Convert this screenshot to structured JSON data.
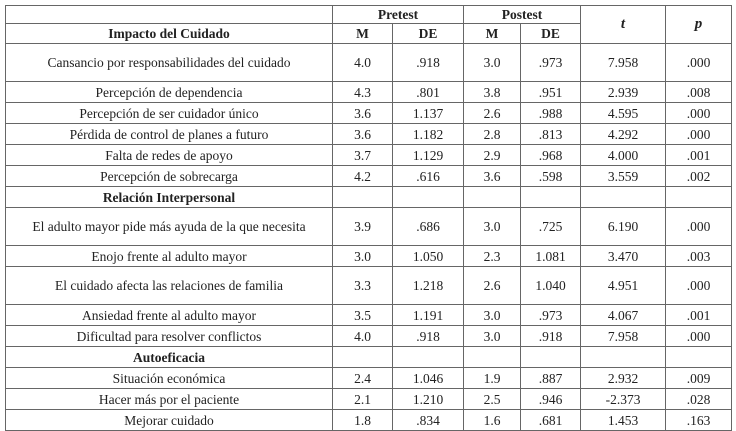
{
  "table": {
    "groups": [
      "Pretest",
      "Postest"
    ],
    "columns": [
      "M",
      "DE",
      "M",
      "DE",
      "t",
      "p"
    ],
    "sections": [
      {
        "title": "Impacto del Cuidado",
        "rows": [
          [
            "Cansancio por responsabilidades del cuidado",
            "4.0",
            ".918",
            "3.0",
            ".973",
            "7.958",
            ".000"
          ],
          [
            "Percepción de dependencia",
            "4.3",
            ".801",
            "3.8",
            ".951",
            "2.939",
            ".008"
          ],
          [
            "Percepción de ser cuidador único",
            "3.6",
            "1.137",
            "2.6",
            ".988",
            "4.595",
            ".000"
          ],
          [
            "Pérdida de control de planes a futuro",
            "3.6",
            "1.182",
            "2.8",
            ".813",
            "4.292",
            ".000"
          ],
          [
            "Falta de redes de apoyo",
            "3.7",
            "1.129",
            "2.9",
            ".968",
            "4.000",
            ".001"
          ],
          [
            "Percepción de sobrecarga",
            "4.2",
            ".616",
            "3.6",
            ".598",
            "3.559",
            ".002"
          ]
        ]
      },
      {
        "title": "Relación Interpersonal",
        "rows": [
          [
            "El adulto mayor pide más ayuda de la que necesita",
            "3.9",
            ".686",
            "3.0",
            ".725",
            "6.190",
            ".000"
          ],
          [
            "Enojo frente al adulto mayor",
            "3.0",
            "1.050",
            "2.3",
            "1.081",
            "3.470",
            ".003"
          ],
          [
            "El cuidado afecta las relaciones de familia",
            "3.3",
            "1.218",
            "2.6",
            "1.040",
            "4.951",
            ".000"
          ],
          [
            "Ansiedad frente al adulto mayor",
            "3.5",
            "1.191",
            "3.0",
            ".973",
            "4.067",
            ".001"
          ],
          [
            "Dificultad para resolver conflictos",
            "4.0",
            ".918",
            "3.0",
            ".918",
            "7.958",
            ".000"
          ]
        ]
      },
      {
        "title": "Autoeficacia",
        "rows": [
          [
            "Situación económica",
            "2.4",
            "1.046",
            "1.9",
            ".887",
            "2.932",
            ".009"
          ],
          [
            "Hacer más por el paciente",
            "2.1",
            "1.210",
            "2.5",
            ".946",
            "-2.373",
            ".028"
          ],
          [
            "Mejorar cuidado",
            "1.8",
            ".834",
            "1.6",
            ".681",
            "1.453",
            ".163"
          ]
        ]
      }
    ]
  }
}
